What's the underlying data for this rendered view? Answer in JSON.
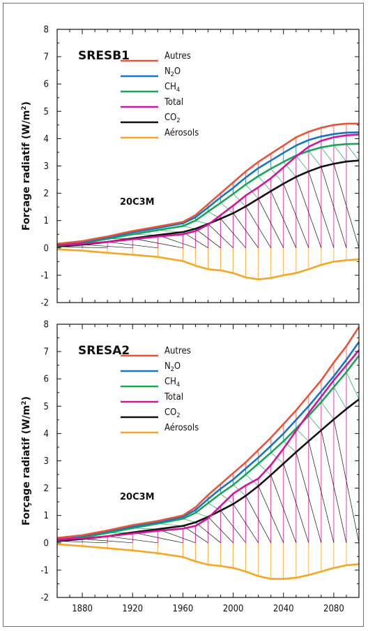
{
  "chart_data": [
    {
      "type": "line",
      "title": "SRESB1",
      "annotation": "20C3M",
      "ylabel": "Forçage radiatif (W/m²)",
      "xlim": [
        1860,
        2100
      ],
      "ylim": [
        -2,
        8
      ],
      "x_ticks": [
        1880,
        1920,
        1960,
        2000,
        2040,
        2080
      ],
      "y_ticks": [
        8,
        7,
        6,
        5,
        4,
        3,
        2,
        1,
        0,
        -1,
        -2
      ],
      "x": [
        1860,
        1880,
        1900,
        1920,
        1940,
        1960,
        1970,
        1980,
        1990,
        2000,
        2010,
        2020,
        2030,
        2040,
        2050,
        2060,
        2070,
        2080,
        2090,
        2100
      ],
      "series": [
        {
          "name": "Autres",
          "color": "#e8533a",
          "values": [
            0.15,
            0.25,
            0.42,
            0.62,
            0.78,
            0.95,
            1.2,
            1.6,
            2.0,
            2.4,
            2.8,
            3.15,
            3.45,
            3.75,
            4.05,
            4.25,
            4.4,
            4.5,
            4.55,
            4.55
          ]
        },
        {
          "name": "N2O",
          "color": "#1673c5",
          "values": [
            0.12,
            0.22,
            0.38,
            0.57,
            0.73,
            0.9,
            1.12,
            1.48,
            1.85,
            2.2,
            2.58,
            2.92,
            3.2,
            3.48,
            3.75,
            3.95,
            4.08,
            4.17,
            4.22,
            4.23
          ]
        },
        {
          "name": "CH4",
          "color": "#19a553",
          "values": [
            0.08,
            0.18,
            0.33,
            0.5,
            0.65,
            0.8,
            1.0,
            1.33,
            1.65,
            1.98,
            2.32,
            2.63,
            2.9,
            3.15,
            3.38,
            3.55,
            3.68,
            3.76,
            3.8,
            3.81
          ]
        },
        {
          "name": "Total",
          "color": "#d6139a",
          "values": [
            0.1,
            0.15,
            0.22,
            0.32,
            0.42,
            0.5,
            0.62,
            0.85,
            1.2,
            1.55,
            1.92,
            2.22,
            2.55,
            2.95,
            3.35,
            3.7,
            3.92,
            4.05,
            4.12,
            4.15
          ]
        },
        {
          "name": "CO2",
          "color": "#111111",
          "values": [
            0.05,
            0.12,
            0.22,
            0.35,
            0.47,
            0.58,
            0.7,
            0.88,
            1.07,
            1.27,
            1.52,
            1.8,
            2.08,
            2.35,
            2.6,
            2.8,
            2.97,
            3.08,
            3.16,
            3.2
          ]
        },
        {
          "name": "Aérosols",
          "color": "#f5a623",
          "values": [
            -0.05,
            -0.1,
            -0.18,
            -0.25,
            -0.33,
            -0.48,
            -0.65,
            -0.78,
            -0.82,
            -0.92,
            -1.08,
            -1.15,
            -1.1,
            -1.0,
            -0.92,
            -0.78,
            -0.62,
            -0.5,
            -0.45,
            -0.42
          ]
        }
      ]
    },
    {
      "type": "line",
      "title": "SRESA2",
      "annotation": "20C3M",
      "ylabel": "Forçage radiatif (W/m²)",
      "xlim": [
        1860,
        2100
      ],
      "ylim": [
        -2,
        8
      ],
      "x_ticks": [
        1880,
        1920,
        1960,
        2000,
        2040,
        2080
      ],
      "y_ticks": [
        8,
        7,
        6,
        5,
        4,
        3,
        2,
        1,
        0,
        -1,
        -2
      ],
      "x": [
        1860,
        1880,
        1900,
        1920,
        1940,
        1960,
        1970,
        1980,
        1990,
        2000,
        2010,
        2020,
        2030,
        2040,
        2050,
        2060,
        2070,
        2080,
        2090,
        2100
      ],
      "series": [
        {
          "name": "Autres",
          "color": "#e8533a",
          "values": [
            0.18,
            0.28,
            0.45,
            0.65,
            0.8,
            1.0,
            1.3,
            1.75,
            2.15,
            2.55,
            2.95,
            3.4,
            3.85,
            4.35,
            4.85,
            5.4,
            5.95,
            6.6,
            7.2,
            7.9
          ]
        },
        {
          "name": "N2O",
          "color": "#1673c5",
          "values": [
            0.15,
            0.25,
            0.42,
            0.6,
            0.75,
            0.95,
            1.2,
            1.6,
            1.98,
            2.32,
            2.72,
            3.12,
            3.55,
            4.0,
            4.5,
            5.0,
            5.55,
            6.1,
            6.7,
            7.35
          ]
        },
        {
          "name": "CH4",
          "color": "#19a553",
          "values": [
            0.1,
            0.2,
            0.36,
            0.54,
            0.7,
            0.88,
            1.1,
            1.45,
            1.8,
            2.12,
            2.5,
            2.9,
            3.3,
            3.72,
            4.18,
            4.65,
            5.15,
            5.7,
            6.25,
            6.85
          ]
        },
        {
          "name": "Total",
          "color": "#d6139a",
          "values": [
            0.12,
            0.16,
            0.24,
            0.34,
            0.44,
            0.52,
            0.62,
            0.9,
            1.35,
            1.8,
            2.1,
            2.35,
            2.85,
            3.45,
            4.1,
            4.75,
            5.35,
            5.95,
            6.5,
            7.05
          ]
        },
        {
          "name": "CO2",
          "color": "#111111",
          "values": [
            0.06,
            0.14,
            0.24,
            0.38,
            0.5,
            0.62,
            0.75,
            0.95,
            1.18,
            1.42,
            1.72,
            2.08,
            2.48,
            2.9,
            3.32,
            3.72,
            4.12,
            4.52,
            4.9,
            5.25
          ]
        },
        {
          "name": "Aérosols",
          "color": "#f5a623",
          "values": [
            -0.05,
            -0.12,
            -0.2,
            -0.28,
            -0.38,
            -0.52,
            -0.68,
            -0.8,
            -0.85,
            -0.92,
            -1.05,
            -1.22,
            -1.32,
            -1.32,
            -1.28,
            -1.18,
            -1.05,
            -0.92,
            -0.82,
            -0.78
          ]
        }
      ]
    }
  ]
}
